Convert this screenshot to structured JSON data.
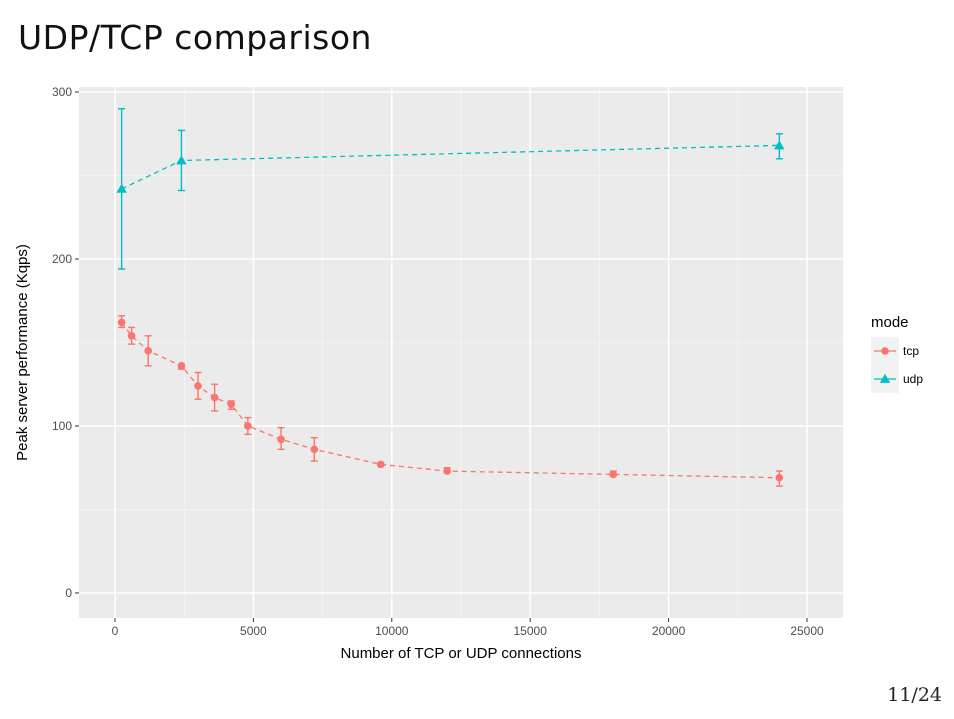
{
  "slide": {
    "title": "UDP/TCP comparison",
    "page": "11/24"
  },
  "colors": {
    "tcp": "#F8766D",
    "udp": "#00BFC4",
    "panel": "#EBEBEB",
    "grid_major": "#FFFFFF",
    "grid_minor": "#F5F5F5"
  },
  "chart_data": {
    "type": "line",
    "title": "",
    "xlabel": "Number of TCP or UDP connections",
    "ylabel": "Peak server performance (Kqps)",
    "xlim": [
      -1300,
      26300
    ],
    "ylim": [
      -15,
      303
    ],
    "xticks": [
      0,
      5000,
      10000,
      15000,
      20000,
      25000
    ],
    "yticks": [
      0,
      100,
      200,
      300
    ],
    "grid": true,
    "legend": {
      "title": "mode",
      "position": "right"
    },
    "series": [
      {
        "name": "tcp",
        "marker": "circle",
        "linestyle": "dashed",
        "points": [
          {
            "x": 240,
            "y": 162,
            "lo": 159,
            "hi": 166
          },
          {
            "x": 600,
            "y": 154,
            "lo": 149,
            "hi": 159
          },
          {
            "x": 1200,
            "y": 145,
            "lo": 136,
            "hi": 154
          },
          {
            "x": 2400,
            "y": 136,
            "lo": 134,
            "hi": 137
          },
          {
            "x": 3000,
            "y": 124,
            "lo": 116,
            "hi": 132
          },
          {
            "x": 3600,
            "y": 117,
            "lo": 109,
            "hi": 125
          },
          {
            "x": 4200,
            "y": 113,
            "lo": 110,
            "hi": 115
          },
          {
            "x": 4800,
            "y": 100,
            "lo": 95,
            "hi": 105
          },
          {
            "x": 6000,
            "y": 92,
            "lo": 86,
            "hi": 99
          },
          {
            "x": 7200,
            "y": 86,
            "lo": 79,
            "hi": 93
          },
          {
            "x": 9600,
            "y": 77,
            "lo": 76,
            "hi": 78
          },
          {
            "x": 12000,
            "y": 73,
            "lo": 72,
            "hi": 75
          },
          {
            "x": 18000,
            "y": 71,
            "lo": 70,
            "hi": 73
          },
          {
            "x": 24000,
            "y": 69,
            "lo": 64,
            "hi": 73
          }
        ]
      },
      {
        "name": "udp",
        "marker": "triangle",
        "linestyle": "dashed",
        "points": [
          {
            "x": 240,
            "y": 242,
            "lo": 194,
            "hi": 290
          },
          {
            "x": 2400,
            "y": 259,
            "lo": 241,
            "hi": 277
          },
          {
            "x": 24000,
            "y": 268,
            "lo": 260,
            "hi": 275
          }
        ]
      }
    ]
  }
}
